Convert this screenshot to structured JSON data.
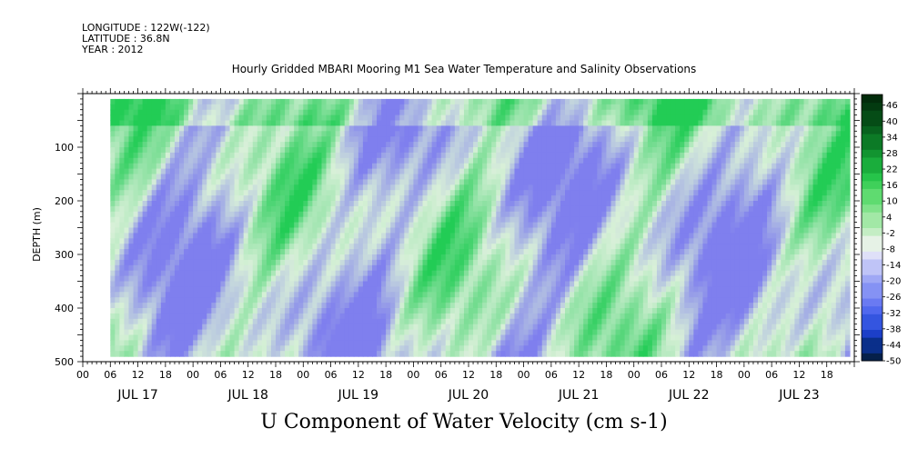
{
  "header": {
    "longitude": "LONGITUDE : 122W(-122)",
    "latitude": "LATITUDE : 36.8N",
    "year": "YEAR : 2012"
  },
  "chart_data": {
    "type": "heatmap",
    "title": "Hourly Gridded MBARI Mooring M1 Sea Water Temperature and Salinity Observations",
    "xlabel": "U Component of Water Velocity (cm s-1)",
    "ylabel": "DEPTH (m)",
    "x_range": [
      "JUL 17 00",
      "JUL 24 00"
    ],
    "x_hour_ticks": [
      "00",
      "06",
      "12",
      "18",
      "00",
      "06",
      "12",
      "18",
      "00",
      "06",
      "12",
      "18",
      "00",
      "06",
      "12",
      "18",
      "00",
      "06",
      "12",
      "18",
      "00",
      "06",
      "12",
      "18",
      "00",
      "06",
      "12",
      "18"
    ],
    "x_day_labels": [
      "JUL 17",
      "JUL 18",
      "JUL 19",
      "JUL 20",
      "JUL 21",
      "JUL 22",
      "JUL 23"
    ],
    "y_range": [
      500,
      0
    ],
    "y_tick_labels": [
      "100",
      "200",
      "300",
      "400",
      "500"
    ],
    "y_tick_values": [
      100,
      200,
      300,
      400,
      500
    ],
    "data_extent": {
      "start": "JUL 17 06",
      "end": "JUL 23 23",
      "depth_min": 10,
      "depth_max": 490
    },
    "colorbar_min": -50,
    "colorbar_max": 50,
    "colorbar_step": 3,
    "colorbar_labels": [
      "46",
      "40",
      "34",
      "28",
      "22",
      "16",
      "10",
      "4",
      "-2",
      "-8",
      "-14",
      "-20",
      "-26",
      "-32",
      "-38",
      "-44",
      "-50"
    ],
    "colors": {
      "negative": "#7f7fee",
      "near_zero": "#d8f0d8",
      "positive": "#22cc55"
    },
    "grid": false
  }
}
